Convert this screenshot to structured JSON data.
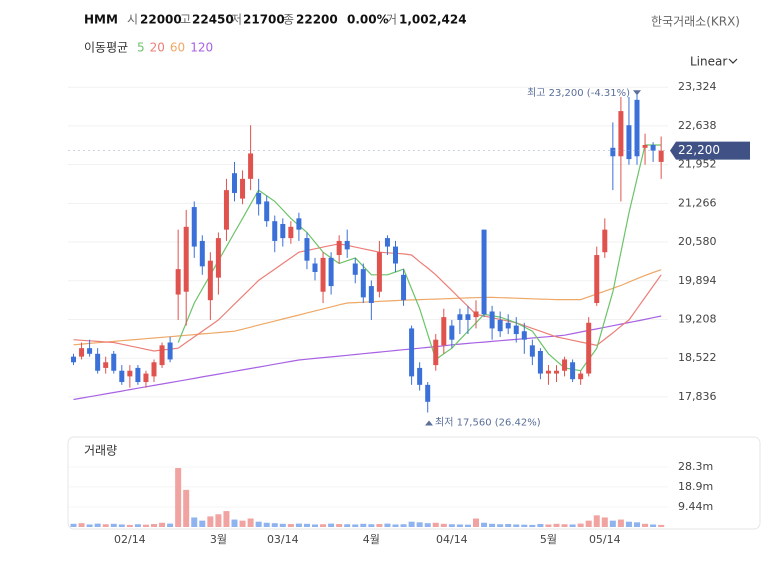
{
  "chart_data": {
    "type": "candlestick",
    "title": "HMM",
    "ohlc_labels": [
      "시",
      "고",
      "저",
      "종"
    ],
    "change": "0.00%",
    "volume_label": "거",
    "day_volume": "1,002,424",
    "exchange": "한국거래소(KRX)",
    "ma_title": "이동평균",
    "scale_mode": "Linear",
    "volume_title": "거래량",
    "up_color": "#e0524d",
    "down_color": "#3a70d8",
    "volume_up_color": "#f0a3a0",
    "volume_down_color": "#8fb3ee",
    "grid": true,
    "categories": [
      null,
      null,
      null,
      null,
      null,
      null,
      null,
      "02/14",
      null,
      null,
      null,
      null,
      null,
      null,
      null,
      null,
      null,
      null,
      "3월",
      null,
      null,
      null,
      null,
      null,
      null,
      null,
      "03/14",
      null,
      null,
      null,
      null,
      null,
      null,
      null,
      null,
      null,
      null,
      "4월",
      null,
      null,
      null,
      null,
      null,
      null,
      null,
      null,
      null,
      "04/14",
      null,
      null,
      null,
      null,
      null,
      null,
      null,
      null,
      null,
      null,
      null,
      "5월",
      null,
      null,
      null,
      null,
      null,
      null,
      "05/14",
      null,
      null,
      null,
      null,
      null,
      null,
      null
    ],
    "open": [
      18550,
      18550,
      18700,
      18600,
      18350,
      18600,
      18300,
      18200,
      18350,
      18100,
      18200,
      18400,
      18800,
      19650,
      19700,
      21200,
      20600,
      19550,
      19950,
      20800,
      21800,
      21350,
      21700,
      21450,
      21300,
      20950,
      20900,
      20650,
      21000,
      20650,
      20200,
      19700,
      20300,
      20350,
      20600,
      20200,
      20100,
      19800,
      19700,
      20650,
      20500,
      20000,
      19050,
      18350,
      18050,
      18400,
      18750,
      19100,
      19300,
      19300,
      19250,
      20800,
      19350,
      19200,
      19150,
      19100,
      19000,
      18750,
      18650,
      18250,
      18250,
      18300,
      18450,
      18150,
      18250,
      19500,
      20400,
      22250,
      22100,
      22650,
      23100,
      22250,
      22300,
      22000
    ],
    "high": [
      18600,
      18800,
      18850,
      18700,
      18550,
      18650,
      18400,
      18400,
      18400,
      18300,
      18500,
      18800,
      18900,
      20800,
      21150,
      21300,
      20700,
      20400,
      20750,
      21700,
      22000,
      21850,
      22650,
      21700,
      21400,
      21050,
      21000,
      20950,
      21100,
      20750,
      20300,
      20400,
      20400,
      20700,
      20800,
      20300,
      20200,
      19900,
      20600,
      20700,
      20600,
      20100,
      19100,
      18450,
      18100,
      18950,
      19400,
      19200,
      19400,
      19450,
      19550,
      20800,
      19450,
      19350,
      19300,
      19250,
      19150,
      18850,
      18700,
      18400,
      18400,
      18550,
      18500,
      18300,
      19250,
      20500,
      21000,
      22700,
      23150,
      23150,
      23200,
      22500,
      22350,
      22450
    ],
    "low": [
      18400,
      18500,
      18550,
      18250,
      18250,
      18250,
      18050,
      18000,
      18050,
      18000,
      18100,
      18350,
      18450,
      19200,
      19100,
      20300,
      20000,
      19200,
      19650,
      20600,
      21300,
      21250,
      21500,
      21050,
      20850,
      20400,
      20500,
      20550,
      20600,
      20100,
      19900,
      19500,
      19650,
      20200,
      20300,
      19850,
      19500,
      19200,
      19600,
      20350,
      20050,
      19450,
      18050,
      17950,
      17560,
      18300,
      18600,
      18700,
      18950,
      18950,
      19050,
      19250,
      18850,
      18900,
      18950,
      18800,
      18600,
      18400,
      18150,
      18050,
      18100,
      18200,
      18100,
      18050,
      18200,
      19450,
      20300,
      21500,
      21300,
      21950,
      21950,
      21950,
      22000,
      21700
    ],
    "close": [
      18450,
      18700,
      18600,
      18300,
      18450,
      18300,
      18100,
      18300,
      18100,
      18250,
      18450,
      18750,
      18500,
      20100,
      20850,
      20500,
      20150,
      20250,
      20650,
      21500,
      21450,
      21700,
      22150,
      21250,
      20950,
      20600,
      20650,
      20850,
      20800,
      20250,
      20050,
      20300,
      19800,
      20600,
      20450,
      20000,
      19600,
      19500,
      20400,
      20500,
      20200,
      19550,
      18200,
      18050,
      17750,
      18850,
      19250,
      18850,
      19200,
      19200,
      19350,
      19300,
      19050,
      19000,
      19050,
      18950,
      18850,
      18550,
      18250,
      18300,
      18300,
      18500,
      18150,
      18250,
      19150,
      20350,
      20800,
      22100,
      22900,
      22050,
      22100,
      22300,
      22200,
      22200
    ],
    "ma": [
      {
        "name": "5",
        "color": "#6cc36a",
        "values": [
          null,
          null,
          null,
          null,
          null,
          null,
          null,
          null,
          null,
          null,
          null,
          null,
          null,
          18800,
          19150,
          19500,
          19750,
          20000,
          20250,
          20500,
          20750,
          21000,
          21250,
          21500,
          21400,
          21300,
          21150,
          21000,
          20875,
          20750,
          20575,
          20400,
          20300,
          20200,
          20250,
          20300,
          20150,
          20000,
          20000,
          20000,
          20050,
          20100,
          19750,
          19400,
          18950,
          18500,
          18600,
          18700,
          18850,
          19000,
          19150,
          19300,
          19275,
          19250,
          19200,
          19150,
          19075,
          19000,
          18800,
          18600,
          18475,
          18350,
          18325,
          18300,
          18500,
          18700,
          19200,
          19700,
          20400,
          21100,
          21700,
          22300,
          22300,
          22300
        ]
      },
      {
        "name": "20",
        "color": "#ec7f78",
        "values": [
          18850,
          18840,
          18830,
          18820,
          18810,
          18800,
          18770,
          18740,
          18710,
          18680,
          18650,
          18667,
          18683,
          18700,
          18800,
          18900,
          19000,
          19100,
          19200,
          19340,
          19480,
          19620,
          19760,
          19900,
          20000,
          20100,
          20200,
          20300,
          20400,
          20430,
          20460,
          20490,
          20520,
          20550,
          20520,
          20490,
          20460,
          20430,
          20400,
          20390,
          20380,
          20370,
          20350,
          20230,
          20120,
          20000,
          19860,
          19720,
          19580,
          19440,
          19300,
          19270,
          19240,
          19210,
          19180,
          19150,
          19100,
          19050,
          19000,
          18950,
          18900,
          18870,
          18840,
          18810,
          18780,
          18750,
          18860,
          18970,
          19090,
          19200,
          19400,
          19600,
          19800,
          20000
        ]
      },
      {
        "name": "60",
        "color": "#eea867",
        "values": [
          18760,
          18772,
          18784,
          18796,
          18808,
          18820,
          18832,
          18844,
          18856,
          18868,
          18880,
          18892,
          18904,
          18916,
          18928,
          18940,
          18952,
          18964,
          18976,
          18988,
          19000,
          19036,
          19072,
          19108,
          19144,
          19180,
          19216,
          19252,
          19288,
          19324,
          19360,
          19396,
          19432,
          19468,
          19500,
          19507,
          19514,
          19521,
          19528,
          19535,
          19542,
          19549,
          19556,
          19560,
          19565,
          19570,
          19575,
          19580,
          19585,
          19590,
          19595,
          19600,
          19600,
          19595,
          19590,
          19585,
          19580,
          19575,
          19570,
          19565,
          19560,
          19560,
          19560,
          19560,
          19610,
          19660,
          19710,
          19760,
          19810,
          19870,
          19930,
          19990,
          20040,
          20090
        ]
      },
      {
        "name": "120",
        "color": "#a862e3",
        "values": [
          17790,
          17815,
          17840,
          17865,
          17890,
          17915,
          17940,
          17965,
          17990,
          18015,
          18040,
          18065,
          18090,
          18115,
          18140,
          18165,
          18190,
          18215,
          18240,
          18265,
          18290,
          18315,
          18340,
          18365,
          18390,
          18415,
          18440,
          18465,
          18490,
          18504,
          18518,
          18532,
          18546,
          18560,
          18574,
          18588,
          18602,
          18616,
          18630,
          18644,
          18658,
          18672,
          18686,
          18700,
          18714,
          18728,
          18742,
          18760,
          18772,
          18784,
          18796,
          18808,
          18820,
          18832,
          18844,
          18856,
          18868,
          18880,
          18892,
          18904,
          18916,
          18930,
          18958,
          18986,
          19014,
          19042,
          19070,
          19098,
          19126,
          19154,
          19182,
          19210,
          19240,
          19270
        ]
      }
    ],
    "ylim": [
      17250,
      23540
    ],
    "yticks": [
      {
        "value": 23324,
        "label": "23,324"
      },
      {
        "value": 22638,
        "label": "22,638"
      },
      {
        "value": 21952,
        "label": "21,952"
      },
      {
        "value": 21266,
        "label": "21,266"
      },
      {
        "value": 20580,
        "label": "20,580"
      },
      {
        "value": 19894,
        "label": "19,894"
      },
      {
        "value": 19208,
        "label": "19,208"
      },
      {
        "value": 18522,
        "label": "18,522"
      },
      {
        "value": 17836,
        "label": "17,836"
      }
    ],
    "current_price": {
      "value": 22200,
      "label": "22,200"
    },
    "high_annotation": {
      "value": 23200,
      "label": "최고 23,200 (-4.31%)"
    },
    "low_annotation": {
      "value": 17560,
      "label": "최저 17,560 (26.42%)"
    },
    "volume": [
      1.5,
      1.8,
      1.2,
      1.6,
      1.3,
      1.5,
      1.2,
      1.0,
      1.3,
      1.1,
      1.4,
      2.0,
      1.6,
      27.8,
      17.5,
      4.5,
      3.0,
      5.0,
      6.0,
      7.5,
      3.5,
      3.0,
      4.0,
      2.5,
      2.0,
      1.8,
      1.5,
      1.4,
      1.6,
      1.5,
      1.2,
      1.3,
      1.6,
      1.4,
      1.3,
      1.2,
      1.5,
      1.3,
      1.4,
      1.6,
      1.2,
      1.3,
      2.5,
      2.2,
      1.8,
      2.0,
      1.5,
      1.3,
      1.2,
      1.1,
      4.0,
      2.0,
      1.5,
      1.3,
      1.4,
      1.2,
      1.1,
      1.0,
      1.4,
      1.2,
      1.5,
      1.3,
      1.2,
      1.6,
      3.0,
      5.5,
      4.5,
      3.0,
      3.5,
      2.5,
      2.2,
      1.5,
      1.2,
      1.0
    ],
    "volume_ylim": [
      0,
      41
    ],
    "volume_ticks": [
      {
        "value": 9.44,
        "label": "9.44m"
      },
      {
        "value": 18.9,
        "label": "18.9m"
      },
      {
        "value": 28.3,
        "label": "28.3m"
      }
    ]
  }
}
